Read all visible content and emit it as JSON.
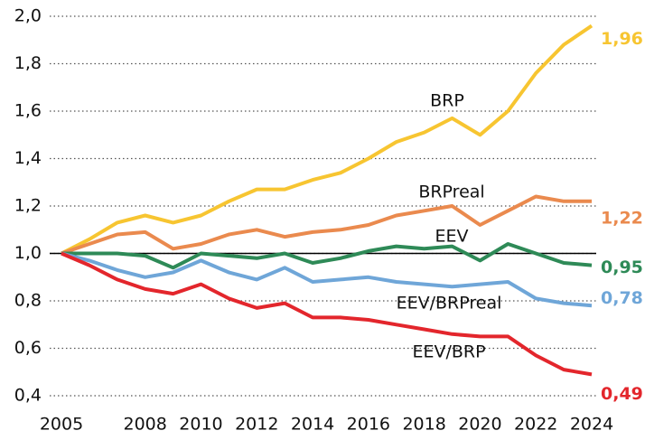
{
  "chart_data": {
    "type": "line",
    "x": [
      2005,
      2006,
      2007,
      2008,
      2009,
      2010,
      2011,
      2012,
      2013,
      2014,
      2015,
      2016,
      2017,
      2018,
      2019,
      2020,
      2021,
      2022,
      2023,
      2024
    ],
    "xlim": [
      2005,
      2024
    ],
    "xticks": [
      2005,
      2008,
      2010,
      2012,
      2014,
      2016,
      2018,
      2020,
      2022,
      2024
    ],
    "ylim": [
      0.4,
      2.0
    ],
    "yticks": [
      {
        "value": 0.4,
        "label": "0,4"
      },
      {
        "value": 0.6,
        "label": "0,6"
      },
      {
        "value": 0.8,
        "label": "0,8"
      },
      {
        "value": 1.0,
        "label": "1,0"
      },
      {
        "value": 1.2,
        "label": "1,2"
      },
      {
        "value": 1.4,
        "label": "1,4"
      },
      {
        "value": 1.6,
        "label": "1,6"
      },
      {
        "value": 1.8,
        "label": "1,8"
      },
      {
        "value": 2.0,
        "label": "2,0"
      }
    ],
    "grid": true,
    "baseline": 1,
    "series": [
      {
        "name": "BRP",
        "color": "#f7c531",
        "values": [
          1.0,
          1.06,
          1.13,
          1.16,
          1.13,
          1.16,
          1.22,
          1.27,
          1.27,
          1.31,
          1.34,
          1.4,
          1.47,
          1.51,
          1.57,
          1.5,
          1.6,
          1.76,
          1.88,
          1.96
        ],
        "value_labels": [
          null,
          null,
          null,
          null,
          null,
          null,
          null,
          null,
          null,
          null,
          null,
          null,
          null,
          null,
          null,
          null,
          null,
          null,
          null,
          "1,96"
        ]
      },
      {
        "name": "BRPreal",
        "color": "#ea8a4e",
        "values": [
          1.0,
          1.04,
          1.08,
          1.09,
          1.02,
          1.04,
          1.08,
          1.1,
          1.07,
          1.09,
          1.1,
          1.12,
          1.16,
          1.18,
          1.2,
          1.12,
          1.18,
          1.24,
          1.22,
          1.22
        ],
        "value_labels": [
          null,
          null,
          null,
          null,
          null,
          null,
          null,
          null,
          null,
          null,
          null,
          null,
          null,
          null,
          null,
          null,
          null,
          null,
          null,
          "1,22"
        ]
      },
      {
        "name": "EEV",
        "color": "#2e8a57",
        "values": [
          1.0,
          1.0,
          1.0,
          0.99,
          0.94,
          1.0,
          0.99,
          0.98,
          1.0,
          0.96,
          0.98,
          1.01,
          1.03,
          1.02,
          1.03,
          0.97,
          1.04,
          1.0,
          0.96,
          0.95
        ],
        "value_labels": [
          null,
          null,
          null,
          null,
          null,
          null,
          null,
          null,
          null,
          null,
          null,
          null,
          null,
          null,
          null,
          null,
          null,
          null,
          null,
          "0,95"
        ]
      },
      {
        "name": "EEV/BRPreal",
        "color": "#6fa6d8",
        "values": [
          1.0,
          0.97,
          0.93,
          0.9,
          0.92,
          0.97,
          0.92,
          0.89,
          0.94,
          0.88,
          0.89,
          0.9,
          0.88,
          0.87,
          0.86,
          0.87,
          0.88,
          0.81,
          0.79,
          0.78
        ],
        "value_labels": [
          null,
          null,
          null,
          null,
          null,
          null,
          null,
          null,
          null,
          null,
          null,
          null,
          null,
          null,
          null,
          null,
          null,
          null,
          null,
          "0,78"
        ]
      },
      {
        "name": "EEV/BRP",
        "color": "#e3262c",
        "values": [
          1.0,
          0.95,
          0.89,
          0.85,
          0.83,
          0.87,
          0.81,
          0.77,
          0.79,
          0.73,
          0.73,
          0.72,
          0.7,
          0.68,
          0.66,
          0.65,
          0.65,
          0.57,
          0.51,
          0.49
        ],
        "value_labels": [
          null,
          null,
          null,
          null,
          null,
          null,
          null,
          null,
          null,
          null,
          null,
          null,
          null,
          null,
          null,
          null,
          null,
          null,
          null,
          "0,49"
        ]
      }
    ]
  }
}
